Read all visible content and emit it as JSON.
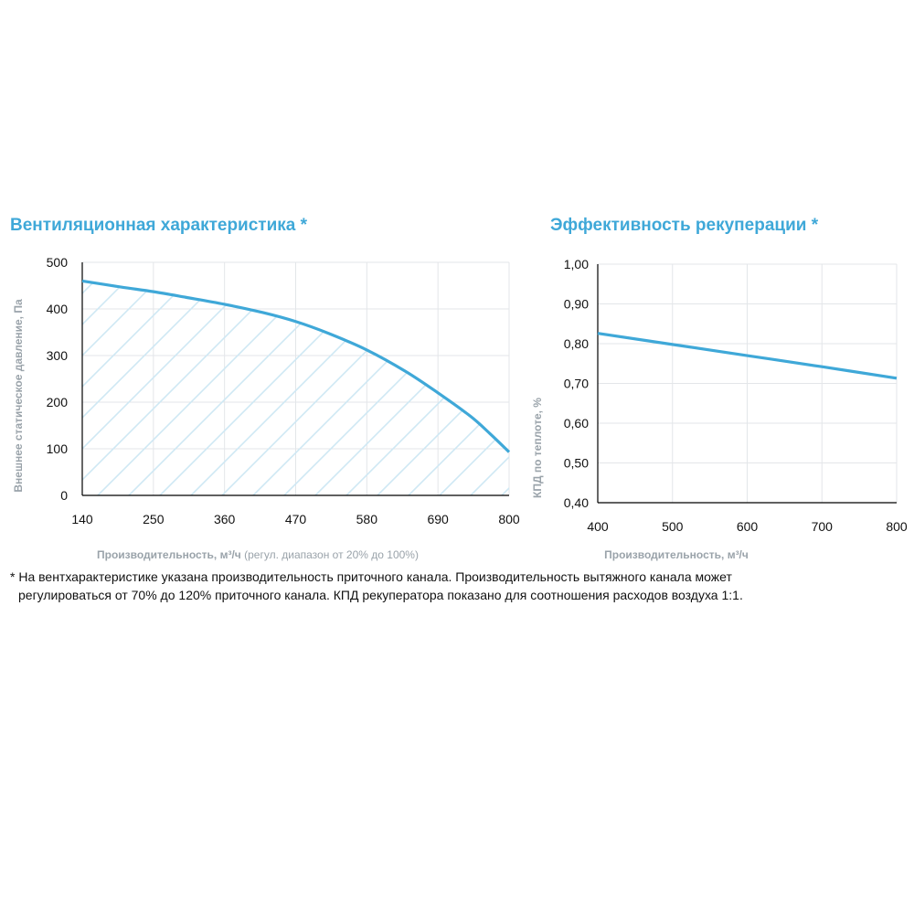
{
  "chart_data": [
    {
      "type": "area",
      "title": "Вентиляционная характеристика *",
      "xlabel": "Производительность, м³/ч",
      "xlabel_note": "(регул. диапазон от 20% до 100%)",
      "ylabel": "Внешнее статическое давление, Па",
      "xlim": [
        140,
        800
      ],
      "ylim": [
        0,
        500
      ],
      "x_ticks": [
        "140",
        "250",
        "360",
        "470",
        "580",
        "690",
        "800"
      ],
      "y_ticks": [
        "500",
        "400",
        "300",
        "200",
        "100",
        "0"
      ],
      "x_tick_values": [
        140,
        250,
        360,
        470,
        580,
        690,
        800
      ],
      "y_tick_values": [
        500,
        400,
        300,
        200,
        100,
        0
      ],
      "grid": true,
      "fill": "hatched",
      "series": [
        {
          "x": [
            140,
            200,
            250,
            300,
            360,
            420,
            470,
            520,
            580,
            640,
            690,
            740,
            770,
            800
          ],
          "y": [
            460,
            447,
            437,
            425,
            410,
            392,
            373,
            348,
            312,
            266,
            220,
            170,
            133,
            93
          ]
        }
      ],
      "colors": {
        "line": "#3fa8d8",
        "hatch": "#cfe8f4",
        "grid": "#e3e6e9"
      }
    },
    {
      "type": "line",
      "title": "Эффективность рекуперации *",
      "xlabel": "Производительность, м³/ч",
      "ylabel": "КПД по теплоте, %",
      "xlim": [
        400,
        800
      ],
      "ylim": [
        0.4,
        1.0
      ],
      "x_ticks": [
        "400",
        "500",
        "600",
        "700",
        "800"
      ],
      "y_ticks": [
        "1,00",
        "0,90",
        "0,80",
        "0,70",
        "0,60",
        "0,50",
        "0,40"
      ],
      "x_tick_values": [
        400,
        500,
        600,
        700,
        800
      ],
      "y_tick_values": [
        1.0,
        0.9,
        0.8,
        0.7,
        0.6,
        0.5,
        0.4
      ],
      "grid": true,
      "series": [
        {
          "x": [
            400,
            500,
            600,
            700,
            800
          ],
          "y": [
            0.826,
            0.798,
            0.77,
            0.742,
            0.713
          ]
        }
      ],
      "colors": {
        "line": "#3fa8d8",
        "grid": "#e3e6e9"
      }
    }
  ],
  "footnote": {
    "line1": "* На вентхарактеристике указана производительность приточного канала. Производительность вытяжного канала может",
    "line2": "регулироваться от 70% до 120% приточного канала. КПД рекуператора показано для соотношения расходов воздуха 1:1."
  }
}
